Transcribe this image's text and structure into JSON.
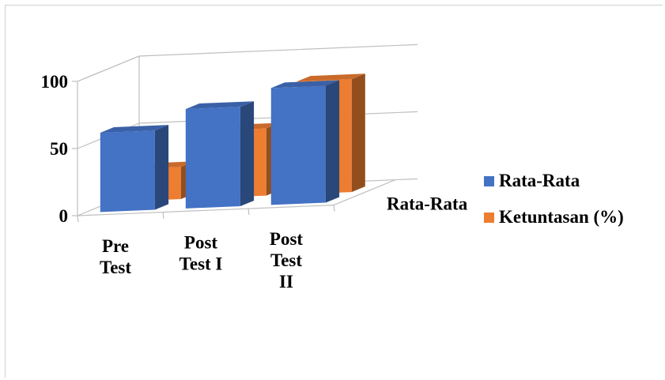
{
  "chart_data": {
    "type": "bar",
    "style": "3d-clustered-column",
    "categories": [
      "Pre Test",
      "Post Test I",
      "Post Test II"
    ],
    "category_lines": [
      [
        "Pre",
        "Test"
      ],
      [
        "Post",
        "Test I"
      ],
      [
        "Post",
        "Test",
        "II"
      ]
    ],
    "depth_label": "Rata-Rata",
    "series": [
      {
        "name": "Rata-Rata",
        "values": [
          59,
          74,
          87
        ],
        "color": "#4472c4"
      },
      {
        "name": "Ketuntasan (%)",
        "values": [
          24,
          50,
          84
        ],
        "color": "#ed7d31"
      }
    ],
    "yticks": [
      0,
      50,
      100
    ],
    "ylim": [
      0,
      100
    ],
    "legend_position": "right",
    "gridlines": true
  }
}
